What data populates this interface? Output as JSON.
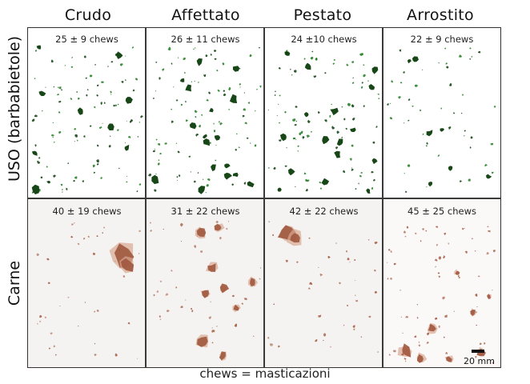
{
  "columns": [
    "Crudo",
    "Affettato",
    "Pestato",
    "Arrostito"
  ],
  "rows": [
    "USO (barbabietole)",
    "Carne"
  ],
  "panels": {
    "beet": [
      "25 ± 9 chews",
      "26 ± 11 chews",
      "24 ±10 chews",
      "22 ± 9 chews"
    ],
    "meat": [
      "40 ± 19 chews",
      "31 ± 22 chews",
      "42 ± 22 chews",
      "45 ± 25 chews"
    ]
  },
  "scale_bar": "20 mm",
  "caption": "chews = masticazioni",
  "colors": {
    "beet_fragment": "#1f7a1f",
    "beet_dark": "#0b3d0b",
    "meat_fragment": "#a0573e",
    "meat_light": "#d9a892"
  }
}
